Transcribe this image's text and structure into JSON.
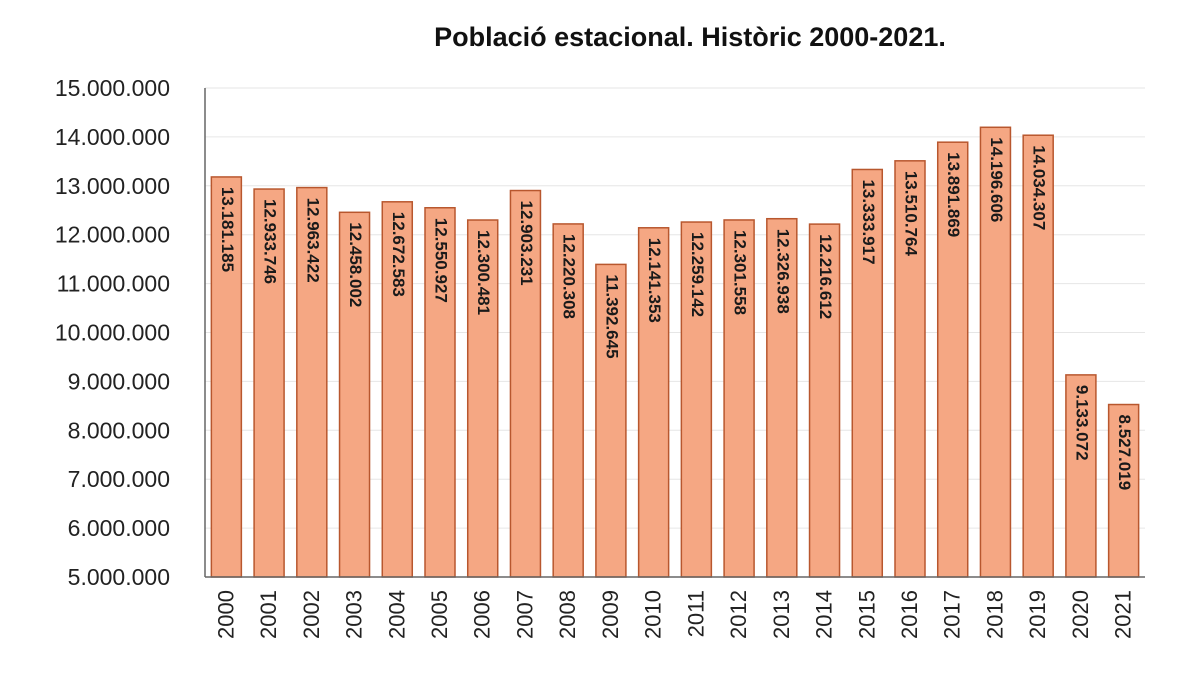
{
  "chart_data": {
    "type": "bar",
    "title": "Població estacional. Històric 2000-2021.",
    "xlabel": "",
    "ylabel": "",
    "ylim": [
      5000000,
      15000000
    ],
    "yticks": [
      "5.000.000",
      "6.000.000",
      "7.000.000",
      "8.000.000",
      "9.000.000",
      "10.000.000",
      "11.000.000",
      "12.000.000",
      "13.000.000",
      "14.000.000",
      "15.000.000"
    ],
    "categories": [
      "2000",
      "2001",
      "2002",
      "2003",
      "2004",
      "2005",
      "2006",
      "2007",
      "2008",
      "2009",
      "2010",
      "2011",
      "2012",
      "2013",
      "2014",
      "2015",
      "2016",
      "2017",
      "2018",
      "2019",
      "2020",
      "2021"
    ],
    "values": [
      13181185,
      12933746,
      12963422,
      12458002,
      12672583,
      12550927,
      12300481,
      12903231,
      12220308,
      11392645,
      12141353,
      12259142,
      12301558,
      12326938,
      12216612,
      13333917,
      13510764,
      13891869,
      14196606,
      14034307,
      9133072,
      8527019
    ],
    "data_labels": [
      "13.181.185",
      "12.933.746",
      "12.963.422",
      "12.458.002",
      "12.672.583",
      "12.550.927",
      "12.300.481",
      "12.903.231",
      "12.220.308",
      "11.392.645",
      "12.141.353",
      "12.259.142",
      "12.301.558",
      "12.326.938",
      "12.216.612",
      "13.333.917",
      "13.510.764",
      "13.891.869",
      "14.196.606",
      "14.034.307",
      "9.133.072",
      "8.527.019"
    ],
    "grid": true,
    "legend": "none",
    "colors": {
      "bar_fill": "#F5A783",
      "bar_stroke": "#B8572E",
      "grid": "#E6E6E6",
      "axis": "#666666"
    }
  }
}
